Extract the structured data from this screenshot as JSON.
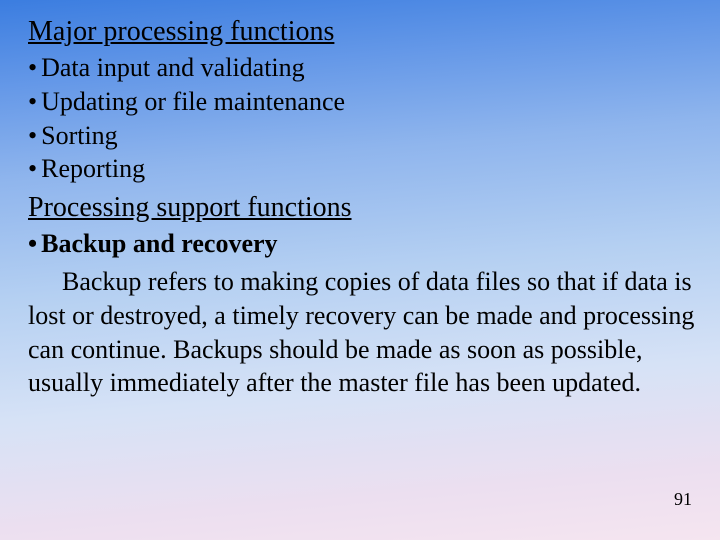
{
  "heading1": "Major processing functions",
  "bullets1": {
    "b1": "Data input and validating",
    "b2": "Updating or file maintenance",
    "b3": "Sorting",
    "b4": "Reporting"
  },
  "heading2": "Processing support functions",
  "bullets2": {
    "b1": "Backup and recovery"
  },
  "paragraph": "Backup refers to making copies of data files so that if data is lost or destroyed, a timely recovery can be made and processing can continue. Backups should be made as soon as possible, usually immediately after the master file has been updated.",
  "page_number": "91",
  "bullet_char": "•"
}
